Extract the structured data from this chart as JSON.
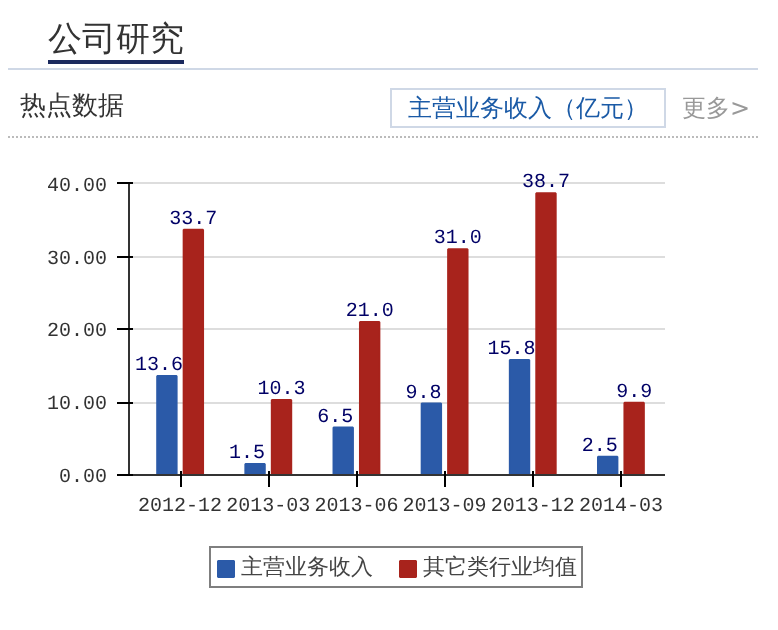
{
  "chart_data": {
    "type": "bar",
    "title": "公司研究",
    "subtitle": "热点数据",
    "annotations": [
      "主营业务收入（亿元）",
      "更多>"
    ],
    "categories": [
      "2012-12",
      "2013-03",
      "2013-06",
      "2013-09",
      "2013-12",
      "2014-03"
    ],
    "series": [
      {
        "name": "主营业务收入",
        "color": "#2b5aa8",
        "values": [
          13.6,
          1.5,
          6.5,
          9.8,
          15.8,
          2.5
        ],
        "value_labels": [
          "13.6",
          "1.5",
          "6.5",
          "9.8",
          "15.8",
          "2.5"
        ]
      },
      {
        "name": "其它类行业均值",
        "color": "#a8231c",
        "values": [
          33.7,
          10.3,
          21.0,
          31.0,
          38.7,
          9.9
        ],
        "value_labels": [
          "33.7",
          "10.3",
          "21.0",
          "31.0",
          "38.7",
          "9.9"
        ]
      }
    ],
    "ylim": [
      0,
      40
    ],
    "yticks": [
      {
        "value": 0,
        "label": "0.00"
      },
      {
        "value": 10,
        "label": "10.00"
      },
      {
        "value": 20,
        "label": "20.00"
      },
      {
        "value": 30,
        "label": "30.00"
      },
      {
        "value": 40,
        "label": "40.00"
      }
    ],
    "grid": "y",
    "legend": "bottom"
  }
}
